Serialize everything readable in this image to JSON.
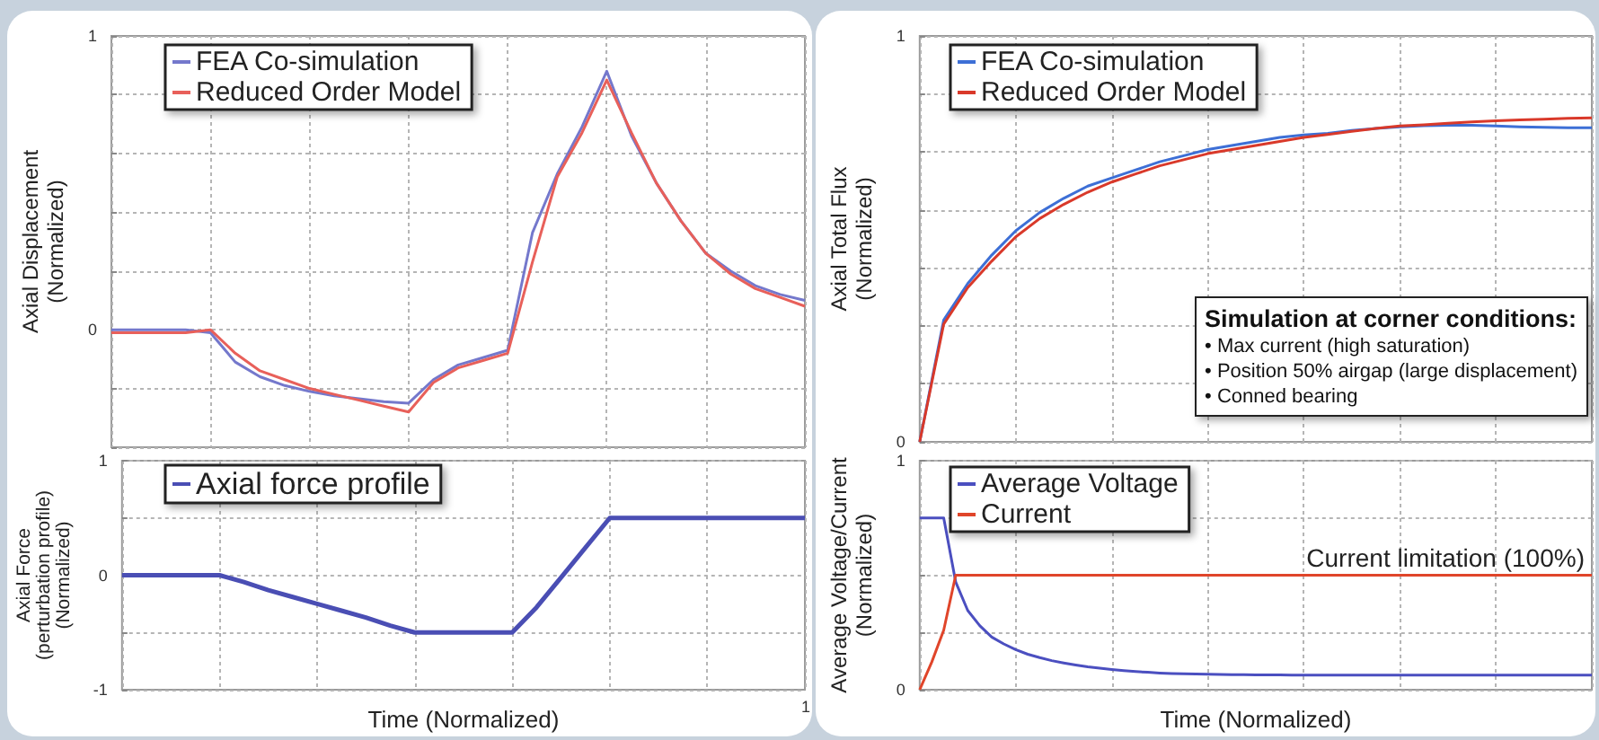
{
  "chart_data": [
    {
      "type": "line",
      "ylabel": "Axial Displacement\n(Normalized)",
      "categories": [
        null,
        null,
        null,
        null,
        null,
        null,
        null,
        null,
        null,
        null,
        null,
        null,
        null,
        null,
        null,
        null,
        null,
        null,
        null,
        null,
        null,
        null,
        null,
        null,
        null,
        null,
        null,
        null,
        null
      ],
      "ylim": [
        -0.4,
        1
      ],
      "yticks": [
        {
          "value": -0.4,
          "label": null
        },
        {
          "value": -0.2,
          "label": null
        },
        0,
        {
          "value": 0.2,
          "label": null
        },
        {
          "value": 0.4,
          "label": null
        },
        {
          "value": 0.6,
          "label": null
        },
        {
          "value": 0.8,
          "label": null
        },
        1
      ],
      "series": [
        {
          "name": "FEA Co-simulation",
          "color": "#7478cc",
          "values": [
            0,
            0,
            0,
            0,
            -0.01,
            -0.11,
            -0.16,
            -0.19,
            -0.21,
            -0.225,
            -0.235,
            -0.245,
            -0.25,
            -0.17,
            -0.12,
            -0.095,
            -0.07,
            0.33,
            0.53,
            0.69,
            0.88,
            0.66,
            0.5,
            0.37,
            0.26,
            0.2,
            0.15,
            0.12,
            0.1
          ]
        },
        {
          "name": "Reduced Order Model",
          "color": "#e8605a",
          "values": [
            -0.01,
            -0.01,
            -0.01,
            -0.01,
            0,
            -0.08,
            -0.14,
            -0.17,
            -0.2,
            -0.22,
            -0.24,
            -0.26,
            -0.28,
            -0.18,
            -0.13,
            -0.105,
            -0.08,
            0.23,
            0.52,
            0.67,
            0.85,
            0.67,
            0.5,
            0.37,
            0.26,
            0.19,
            0.14,
            0.11,
            0.08
          ]
        }
      ],
      "grid": true,
      "legend": "top left",
      "tick_labels": "y"
    },
    {
      "type": "line",
      "xlabel": "Time (Normalized)",
      "ylabel": "Axial Force\n(perturbation profile)\n(Normalized)",
      "categories": [
        null,
        null,
        null,
        null,
        null,
        null,
        null,
        null,
        null,
        null,
        null,
        null,
        null,
        null,
        null,
        null,
        null,
        null,
        null,
        null,
        null,
        null,
        null,
        null,
        null,
        null,
        null,
        null,
        null
      ],
      "ylim": [
        -1,
        1
      ],
      "yticks": [
        -1,
        {
          "value": -0.5,
          "label": null
        },
        0,
        {
          "value": 0.5,
          "label": null
        },
        1
      ],
      "series": [
        {
          "name": "Axial force profile",
          "color": "#4a4eb4",
          "values": [
            0,
            0,
            0,
            0,
            0,
            -0.06,
            -0.13,
            -0.19,
            -0.25,
            -0.31,
            -0.37,
            -0.44,
            -0.5,
            -0.5,
            -0.5,
            -0.5,
            -0.5,
            -0.28,
            -0.02,
            0.24,
            0.5,
            0.5,
            0.5,
            0.5,
            0.5,
            0.5,
            0.5,
            0.5,
            0.5
          ]
        }
      ],
      "grid": true,
      "legend": "top left",
      "tick_labels": "y",
      "annotations": [
        "1"
      ]
    },
    {
      "type": "line",
      "ylabel": "Axial Total Flux\n(Normalized)",
      "categories": [
        null,
        null,
        null,
        null,
        null,
        null,
        null,
        null,
        null,
        null,
        null,
        null,
        null,
        null,
        null,
        null,
        null,
        null,
        null,
        null,
        null,
        null,
        null,
        null,
        null,
        null,
        null,
        null,
        null
      ],
      "ylim": [
        0,
        1
      ],
      "yticks": [
        0,
        {
          "value": 0.1429,
          "label": null
        },
        {
          "value": 0.2857,
          "label": null
        },
        {
          "value": 0.4286,
          "label": null
        },
        {
          "value": 0.5714,
          "label": null
        },
        {
          "value": 0.7143,
          "label": null
        },
        {
          "value": 0.8571,
          "label": null
        },
        1
      ],
      "series": [
        {
          "name": "FEA Co-simulation",
          "color": "#3d6fd6",
          "values": [
            0,
            0.3,
            0.39,
            0.46,
            0.52,
            0.565,
            0.6,
            0.63,
            0.65,
            0.67,
            0.69,
            0.705,
            0.72,
            0.73,
            0.74,
            0.75,
            0.756,
            0.76,
            0.767,
            0.772,
            0.776,
            0.779,
            0.78,
            0.78,
            0.778,
            0.776,
            0.775,
            0.774,
            0.774
          ]
        },
        {
          "name": "Reduced Order Model",
          "color": "#d9392a",
          "values": [
            0,
            0.29,
            0.38,
            0.445,
            0.505,
            0.55,
            0.585,
            0.615,
            0.64,
            0.66,
            0.68,
            0.695,
            0.71,
            0.72,
            0.73,
            0.74,
            0.75,
            0.757,
            0.765,
            0.772,
            0.778,
            0.781,
            0.785,
            0.788,
            0.791,
            0.793,
            0.795,
            0.797,
            0.798
          ]
        }
      ],
      "grid": true,
      "legend": "top left",
      "tick_labels": "y",
      "annotations": [
        "Simulation at corner conditions:",
        "• Max current (high saturation)",
        "• Position 50% airgap (large displacement)",
        "• Conned bearing"
      ]
    },
    {
      "type": "line",
      "xlabel": "Time (Normalized)",
      "ylabel": "Average Voltage/Current\n(Normalized)",
      "categories": [
        null,
        null,
        null,
        null,
        null,
        null,
        null,
        null,
        null,
        null,
        null,
        null,
        null,
        null,
        null,
        null,
        null,
        null,
        null,
        null,
        null,
        null,
        null,
        null,
        null,
        null,
        null,
        null,
        null,
        null,
        null,
        null,
        null,
        null,
        null,
        null,
        null,
        null,
        null,
        null,
        null,
        null,
        null,
        null,
        null,
        null,
        null,
        null,
        null,
        null,
        null,
        null,
        null,
        null,
        null,
        null,
        null
      ],
      "ylim": [
        0,
        1
      ],
      "yticks": [
        0,
        {
          "value": 0.25,
          "label": null
        },
        {
          "value": 0.5,
          "label": null
        },
        {
          "value": 0.75,
          "label": null
        },
        1
      ],
      "series": [
        {
          "name": "Average Voltage",
          "color": "#4b4fc0",
          "values": [
            0.75,
            0.75,
            0.75,
            0.47,
            0.346,
            0.28,
            0.23,
            0.2,
            0.175,
            0.155,
            0.14,
            0.127,
            0.117,
            0.108,
            0.1,
            0.094,
            0.088,
            0.083,
            0.079,
            0.076,
            0.073,
            0.071,
            0.07,
            0.069,
            0.068,
            0.067,
            0.066,
            0.066,
            0.065,
            0.065,
            0.065,
            0.064,
            0.064,
            0.064,
            0.064,
            0.064,
            0.064,
            0.064,
            0.064,
            0.064,
            0.064,
            0.064,
            0.064,
            0.064,
            0.064,
            0.064,
            0.064,
            0.064,
            0.064,
            0.064,
            0.064,
            0.064,
            0.064,
            0.064,
            0.064,
            0.064,
            0.064
          ]
        },
        {
          "name": "Current",
          "color": "#e0452a",
          "values": [
            0,
            0.12,
            0.26,
            0.5,
            0.5,
            0.5,
            0.5,
            0.5,
            0.5,
            0.5,
            0.5,
            0.5,
            0.5,
            0.5,
            0.5,
            0.5,
            0.5,
            0.5,
            0.5,
            0.5,
            0.5,
            0.5,
            0.5,
            0.5,
            0.5,
            0.5,
            0.5,
            0.5,
            0.5,
            0.5,
            0.5,
            0.5,
            0.5,
            0.5,
            0.5,
            0.5,
            0.5,
            0.5,
            0.5,
            0.5,
            0.5,
            0.5,
            0.5,
            0.5,
            0.5,
            0.5,
            0.5,
            0.5,
            0.5,
            0.5,
            0.5,
            0.5,
            0.5,
            0.5,
            0.5,
            0.5,
            0.5
          ]
        }
      ],
      "grid": true,
      "legend": "top left",
      "tick_labels": "y",
      "annotations": [
        {
          "text": "Current limitation (100%)",
          "y": 0.5
        }
      ]
    }
  ]
}
